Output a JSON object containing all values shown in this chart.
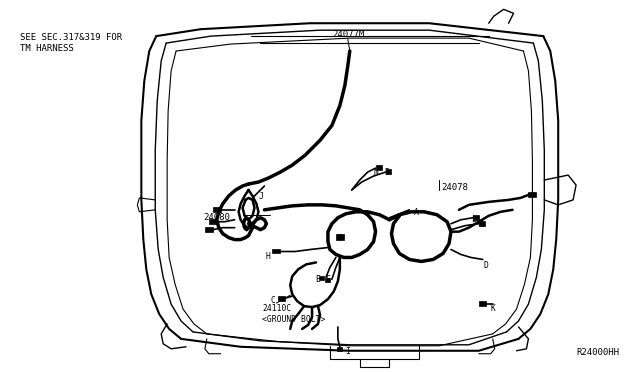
{
  "bg_color": "#ffffff",
  "line_color": "#000000",
  "fig_width": 6.4,
  "fig_height": 3.72,
  "dpi": 100,
  "text_note": "SEE SEC.317&319 FOR\nTM HARNESS",
  "label_24077M": "24077M",
  "label_24080": "24080",
  "label_24078": "24078",
  "label_24110C": "24110C\n<GROUND BOLT>",
  "label_R24000HH": "R24000HH"
}
